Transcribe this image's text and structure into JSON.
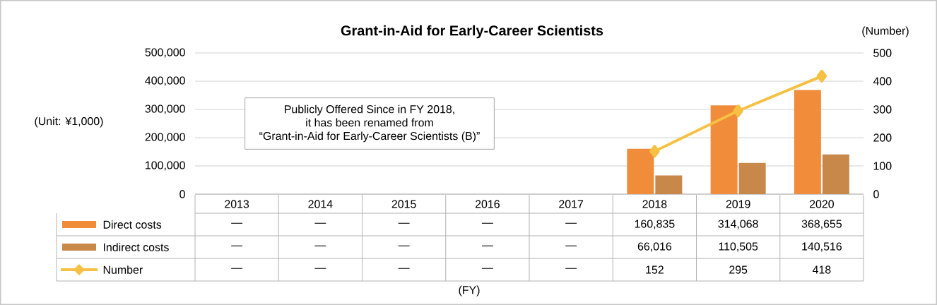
{
  "chart_data": {
    "type": "bar",
    "title": "Grant-in-Aid for Early-Career Scientists",
    "ylabel": "(Unit: ¥1,000)",
    "y2label": "(Number)",
    "annotations": [
      "Publicly Offered Since in FY 2018,",
      "it has been renamed from",
      "“Grant-in-Aid for Early-Career Scientists (B)”",
      "(FY)"
    ],
    "categories": [
      "2013",
      "2014",
      "2015",
      "2016",
      "2017",
      "2018",
      "2019",
      "2020"
    ],
    "series": [
      {
        "name": "Direct costs",
        "color": "#f08c3a",
        "values": [
          null,
          null,
          null,
          null,
          null,
          160835,
          314068,
          368655
        ],
        "value_labels": [
          "—",
          "—",
          "—",
          "—",
          "—",
          "160,835",
          "314,068",
          "368,655"
        ]
      },
      {
        "name": "Indirect costs",
        "color": "#c8884a",
        "values": [
          null,
          null,
          null,
          null,
          null,
          66016,
          110505,
          140516
        ],
        "value_labels": [
          "—",
          "—",
          "—",
          "—",
          "—",
          "66,016",
          "110,505",
          "140,516"
        ]
      },
      {
        "name": "Number",
        "type": "line",
        "axis": "y2",
        "marker": "diamond",
        "color": "#f6c143",
        "values": [
          null,
          null,
          null,
          null,
          null,
          152,
          295,
          418
        ],
        "value_labels": [
          "—",
          "—",
          "—",
          "—",
          "—",
          "152",
          "295",
          "418"
        ]
      }
    ],
    "ylim": [
      0,
      500000
    ],
    "yticks": [
      0,
      {
        "value": 100000,
        "label": "100,000"
      },
      {
        "value": 200000,
        "label": "200,000"
      },
      {
        "value": 300000,
        "label": "300,000"
      },
      {
        "value": 400000,
        "label": "400,000"
      },
      {
        "value": 500000,
        "label": "500,000"
      }
    ],
    "y2lim": [
      0,
      500
    ],
    "y2ticks": [
      0,
      100,
      200,
      300,
      400,
      500
    ],
    "grid": "y",
    "legend": "bottom"
  }
}
